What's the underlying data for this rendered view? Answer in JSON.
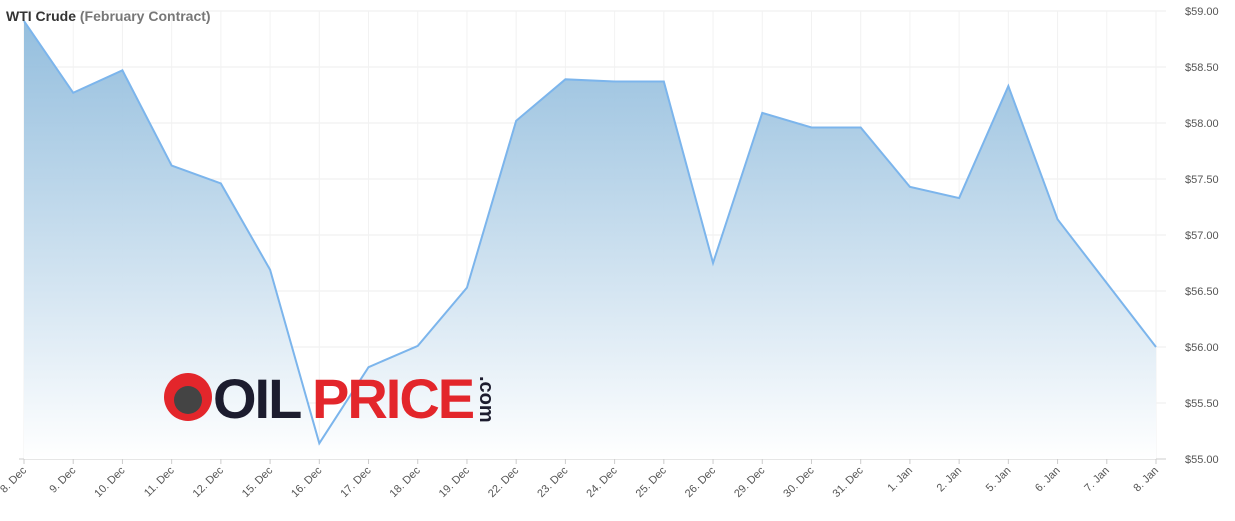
{
  "chart_data": {
    "type": "area",
    "title": "WTI Crude",
    "subtitle": "(February Contract)",
    "categories": [
      "8. Dec",
      "9. Dec",
      "10. Dec",
      "11. Dec",
      "12. Dec",
      "15. Dec",
      "16. Dec",
      "17. Dec",
      "18. Dec",
      "19. Dec",
      "22. Dec",
      "23. Dec",
      "24. Dec",
      "25. Dec",
      "26. Dec",
      "29. Dec",
      "30. Dec",
      "31. Dec",
      "1. Jan",
      "2. Jan",
      "5. Jan",
      "6. Jan",
      "7. Jan",
      "8. Jan"
    ],
    "values": [
      58.91,
      58.27,
      58.47,
      57.62,
      57.46,
      56.69,
      55.14,
      55.82,
      56.01,
      56.53,
      58.02,
      58.39,
      58.37,
      58.37,
      56.75,
      58.09,
      57.96,
      57.96,
      57.43,
      57.33,
      58.33,
      57.14,
      56.57,
      56.0
    ],
    "color": "#7cb5ec",
    "ylim": [
      55,
      59
    ],
    "yticks": [
      {
        "value": 55,
        "label": "$55.00"
      },
      {
        "value": 55.5,
        "label": "$55.50"
      },
      {
        "value": 56,
        "label": "$56.00"
      },
      {
        "value": 56.5,
        "label": "$56.50"
      },
      {
        "value": 57,
        "label": "$57.00"
      },
      {
        "value": 57.5,
        "label": "$57.50"
      },
      {
        "value": 58,
        "label": "$58.00"
      },
      {
        "value": 58.5,
        "label": "$58.50"
      },
      {
        "value": 59,
        "label": "$59.00"
      }
    ],
    "grid": true
  },
  "logo": {
    "oil": "OIL",
    "price": "PRICE",
    "com": ".com"
  }
}
